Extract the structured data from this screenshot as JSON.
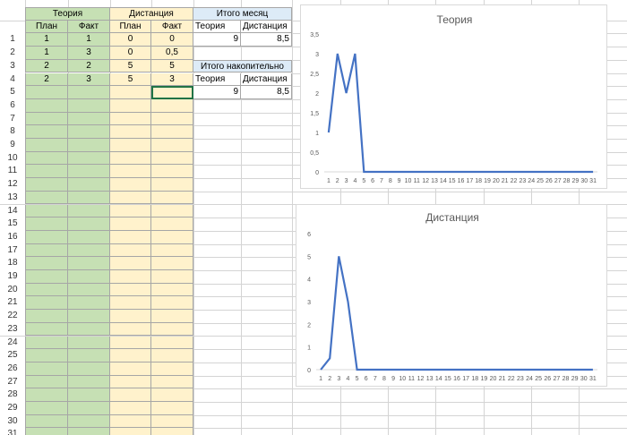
{
  "headers": {
    "theory": "Теория",
    "distance": "Дистанция",
    "month_total": "Итого месяц",
    "cumulative_total": "Итого накопительно"
  },
  "subheaders": {
    "plan": "План",
    "fact": "Факт",
    "theory": "Теория",
    "distance": "Дистанция"
  },
  "rows": [
    {
      "num": "1",
      "theory_plan": "1",
      "theory_fact": "1",
      "dist_plan": "0",
      "dist_fact": "0"
    },
    {
      "num": "2",
      "theory_plan": "1",
      "theory_fact": "3",
      "dist_plan": "0",
      "dist_fact": "0,5"
    },
    {
      "num": "3",
      "theory_plan": "2",
      "theory_fact": "2",
      "dist_plan": "5",
      "dist_fact": "5"
    },
    {
      "num": "4",
      "theory_plan": "2",
      "theory_fact": "3",
      "dist_plan": "5",
      "dist_fact": "3"
    }
  ],
  "empty_row_numbers": [
    "5",
    "6",
    "7",
    "8",
    "9",
    "10",
    "11",
    "12",
    "13",
    "14",
    "15",
    "16",
    "17",
    "18",
    "19",
    "20",
    "21",
    "22",
    "23",
    "24",
    "25",
    "26",
    "27",
    "28",
    "29",
    "30",
    "31"
  ],
  "month_totals": {
    "theory": "9",
    "distance": "8,5"
  },
  "cumulative_totals": {
    "theory": "9",
    "distance": "8,5"
  },
  "colors": {
    "green_fill": "#c6e0b4",
    "yellow_fill": "#fff2cc",
    "blue_fill": "#ddebf7",
    "grid": "#d4d4d4",
    "line": "#4472c4"
  },
  "chart_data": [
    {
      "type": "line",
      "title": "Теория",
      "x": [
        1,
        2,
        3,
        4,
        5,
        6,
        7,
        8,
        9,
        10,
        11,
        12,
        13,
        14,
        15,
        16,
        17,
        18,
        19,
        20,
        21,
        22,
        23,
        24,
        25,
        26,
        27,
        28,
        29,
        30,
        31
      ],
      "values": [
        1,
        3,
        2,
        3,
        0,
        0,
        0,
        0,
        0,
        0,
        0,
        0,
        0,
        0,
        0,
        0,
        0,
        0,
        0,
        0,
        0,
        0,
        0,
        0,
        0,
        0,
        0,
        0,
        0,
        0,
        0
      ],
      "ylim": [
        0,
        3.5
      ],
      "yticks": [
        "0",
        "0,5",
        "1",
        "1,5",
        "2",
        "2,5",
        "3",
        "3,5"
      ],
      "grid": false
    },
    {
      "type": "line",
      "title": "Дистанция",
      "x": [
        1,
        2,
        3,
        4,
        5,
        6,
        7,
        8,
        9,
        10,
        11,
        12,
        13,
        14,
        15,
        16,
        17,
        18,
        19,
        20,
        21,
        22,
        23,
        24,
        25,
        26,
        27,
        28,
        29,
        30,
        31
      ],
      "values": [
        0,
        0.5,
        5,
        3,
        0,
        0,
        0,
        0,
        0,
        0,
        0,
        0,
        0,
        0,
        0,
        0,
        0,
        0,
        0,
        0,
        0,
        0,
        0,
        0,
        0,
        0,
        0,
        0,
        0,
        0,
        0
      ],
      "ylim": [
        0,
        6
      ],
      "yticks": [
        "0",
        "1",
        "2",
        "3",
        "4",
        "5",
        "6"
      ],
      "grid": false
    }
  ]
}
